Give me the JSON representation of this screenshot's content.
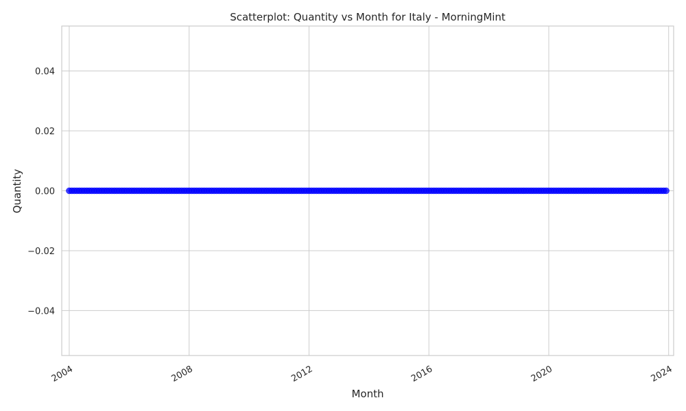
{
  "chart_data": {
    "type": "scatter",
    "title": "Scatterplot: Quantity vs Month for Italy - MorningMint",
    "xlabel": "Month",
    "ylabel": "Quantity",
    "x_range": [
      "2004-01",
      "2023-12"
    ],
    "x_step": "monthly",
    "y_value": 0.0,
    "xlim": [
      "2003-10",
      "2024-03"
    ],
    "ylim": [
      -0.055,
      0.055
    ],
    "x_ticks": [
      "2004",
      "2008",
      "2012",
      "2016",
      "2020",
      "2024"
    ],
    "y_ticks": [
      "0.04",
      "0.02",
      "0.00",
      "−0.02",
      "−0.04"
    ],
    "y_tick_values": [
      0.04,
      0.02,
      0.0,
      -0.02,
      -0.04
    ],
    "grid": true,
    "legend": "none",
    "marker_color": "#0000ff"
  }
}
